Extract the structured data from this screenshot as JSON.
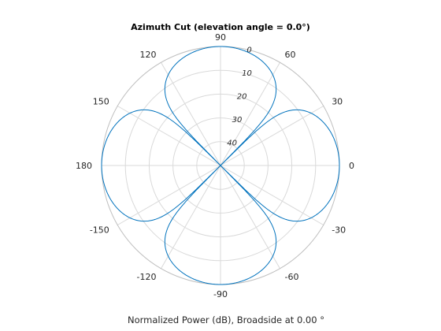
{
  "chart_data": {
    "type": "polar-line",
    "title": "Azimuth Cut (elevation angle = 0.0°)",
    "caption": "Normalized Power (dB), Broadside at 0.00 °",
    "angle_ticks": [
      0,
      30,
      60,
      90,
      120,
      150,
      180,
      -150,
      -120,
      -90,
      -60,
      -30
    ],
    "angle_tick_labels": [
      "0",
      "30",
      "60",
      "90",
      "120",
      "150",
      "180",
      "-150",
      "-120",
      "-90",
      "-60",
      "-30"
    ],
    "radial_ticks": [
      0,
      10,
      20,
      30,
      40
    ],
    "radial_tick_labels": [
      "0",
      "10",
      "20",
      "30",
      "40"
    ],
    "radial_range_db": [
      -50,
      0
    ],
    "grid": true,
    "series": [
      {
        "color": "#0072bd",
        "pattern": "normalized power = 20*log10(|cos(2*azimuth)|), floored at -50 dB",
        "azimuth_deg": [
          0,
          15,
          30,
          45,
          60,
          75,
          90,
          105,
          120,
          135,
          150,
          165,
          180,
          -165,
          -150,
          -135,
          -120,
          -105,
          -90,
          -75,
          -60,
          -45,
          -30,
          -15
        ],
        "power_db": [
          0,
          -1.25,
          -6.02,
          -50,
          -6.02,
          -1.25,
          0,
          -1.25,
          -6.02,
          -50,
          -6.02,
          -1.25,
          0,
          -1.25,
          -6.02,
          -50,
          -6.02,
          -1.25,
          0,
          -1.25,
          -6.02,
          -50,
          -6.02,
          -1.25
        ]
      }
    ]
  }
}
